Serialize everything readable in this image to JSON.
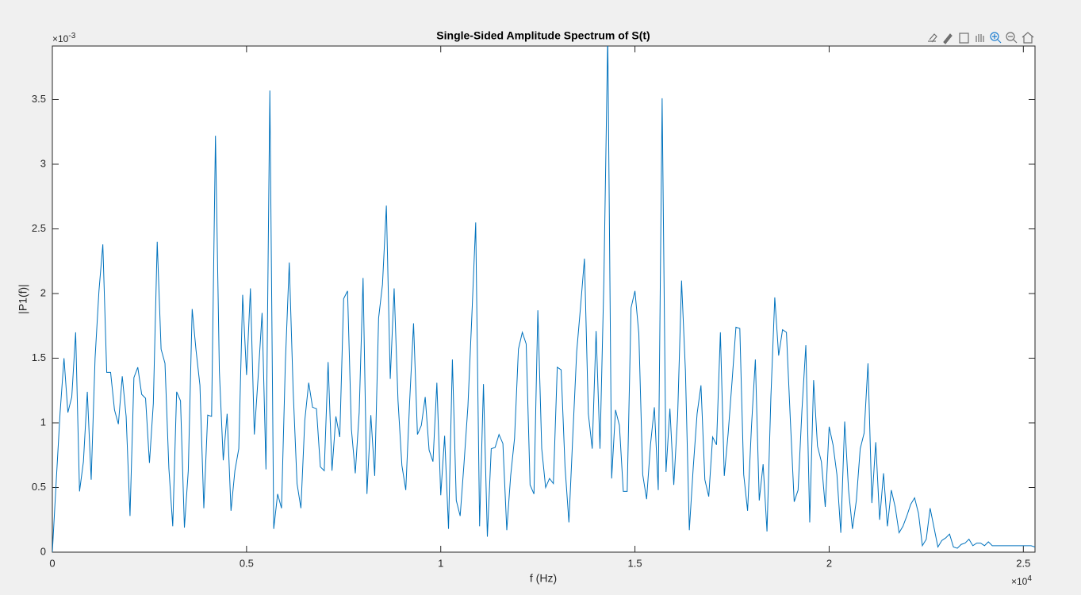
{
  "chart_data": {
    "type": "line",
    "title": "Single-Sided Amplitude Spectrum of S(t)",
    "xlabel": "f (Hz)",
    "ylabel": "|P1(f)|",
    "x_multiplier": {
      "base": "×10",
      "exponent": "4"
    },
    "y_multiplier": {
      "base": "×10",
      "exponent": "-3"
    },
    "xlim": [
      0,
      2.53
    ],
    "ylim": [
      0,
      3.914
    ],
    "xticks": [
      0,
      0.5,
      1,
      1.5,
      2,
      2.5
    ],
    "yticks": [
      0,
      0.5,
      1,
      1.5,
      2,
      2.5,
      3,
      3.5
    ],
    "grid": false,
    "x": [
      0,
      0.01,
      0.02,
      0.03,
      0.04,
      0.05,
      0.06,
      0.07,
      0.08,
      0.09,
      0.1,
      0.11,
      0.12,
      0.13,
      0.14,
      0.15,
      0.16,
      0.17,
      0.18,
      0.19,
      0.2,
      0.21,
      0.22,
      0.23,
      0.24,
      0.25,
      0.26,
      0.27,
      0.28,
      0.29,
      0.3,
      0.31,
      0.32,
      0.33,
      0.34,
      0.35,
      0.36,
      0.37,
      0.38,
      0.39,
      0.4,
      0.41,
      0.42,
      0.43,
      0.44,
      0.45,
      0.46,
      0.47,
      0.48,
      0.49,
      0.5,
      0.51,
      0.52,
      0.53,
      0.54,
      0.55,
      0.56,
      0.57,
      0.58,
      0.59,
      0.6,
      0.61,
      0.62,
      0.63,
      0.64,
      0.65,
      0.66,
      0.67,
      0.68,
      0.69,
      0.7,
      0.71,
      0.72,
      0.73,
      0.74,
      0.75,
      0.76,
      0.77,
      0.78,
      0.79,
      0.8,
      0.81,
      0.82,
      0.83,
      0.84,
      0.85,
      0.86,
      0.87,
      0.88,
      0.89,
      0.9,
      0.91,
      0.92,
      0.93,
      0.94,
      0.95,
      0.96,
      0.97,
      0.98,
      0.99,
      1,
      1.01,
      1.02,
      1.03,
      1.04,
      1.05,
      1.06,
      1.07,
      1.08,
      1.09,
      1.1,
      1.11,
      1.12,
      1.13,
      1.14,
      1.15,
      1.16,
      1.17,
      1.18,
      1.19,
      1.2,
      1.21,
      1.22,
      1.23,
      1.24,
      1.25,
      1.26,
      1.27,
      1.28,
      1.29,
      1.3,
      1.31,
      1.32,
      1.33,
      1.34,
      1.35,
      1.36,
      1.37,
      1.38,
      1.39,
      1.4,
      1.41,
      1.42,
      1.43,
      1.44,
      1.45,
      1.46,
      1.47,
      1.48,
      1.49,
      1.5,
      1.51,
      1.52,
      1.53,
      1.54,
      1.55,
      1.56,
      1.57,
      1.58,
      1.59,
      1.6,
      1.61,
      1.62,
      1.63,
      1.64,
      1.65,
      1.66,
      1.67,
      1.68,
      1.69,
      1.7,
      1.71,
      1.72,
      1.73,
      1.74,
      1.75,
      1.76,
      1.77,
      1.78,
      1.79,
      1.8,
      1.81,
      1.82,
      1.83,
      1.84,
      1.85,
      1.86,
      1.87,
      1.88,
      1.89,
      1.9,
      1.91,
      1.92,
      1.93,
      1.94,
      1.95,
      1.96,
      1.97,
      1.98,
      1.99,
      2,
      2.01,
      2.02,
      2.03,
      2.04,
      2.05,
      2.06,
      2.07,
      2.08,
      2.09,
      2.1,
      2.11,
      2.12,
      2.13,
      2.14,
      2.15,
      2.16,
      2.17,
      2.18,
      2.19,
      2.2,
      2.21,
      2.22,
      2.23,
      2.24,
      2.25,
      2.26,
      2.27,
      2.28,
      2.29,
      2.3,
      2.31,
      2.32,
      2.33,
      2.34,
      2.35,
      2.36,
      2.37,
      2.38,
      2.39,
      2.4,
      2.41,
      2.42,
      2.43,
      2.44,
      2.45,
      2.46,
      2.47,
      2.48,
      2.49,
      2.5,
      2.51,
      2.52,
      2.53
    ],
    "series": [
      {
        "color": "#0072bd",
        "values": [
          0,
          0.55,
          1.08,
          1.5,
          1.08,
          1.2,
          1.7,
          0.47,
          0.7,
          1.24,
          0.56,
          1.5,
          2.02,
          2.38,
          1.39,
          1.39,
          1.1,
          0.99,
          1.36,
          1.05,
          0.28,
          1.35,
          1.43,
          1.22,
          1.19,
          0.69,
          1.15,
          2.4,
          1.57,
          1.46,
          0.65,
          0.2,
          1.24,
          1.17,
          0.19,
          0.63,
          1.88,
          1.56,
          1.29,
          0.34,
          1.06,
          1.05,
          3.22,
          1.4,
          0.71,
          1.07,
          0.32,
          0.63,
          0.8,
          1.99,
          1.37,
          2.04,
          0.91,
          1.36,
          1.85,
          0.64,
          3.57,
          0.18,
          0.45,
          0.34,
          1.47,
          2.24,
          1.25,
          0.53,
          0.34,
          1.02,
          1.31,
          1.12,
          1.11,
          0.66,
          0.63,
          1.47,
          0.63,
          1.05,
          0.89,
          1.96,
          2.02,
          0.95,
          0.61,
          1.08,
          2.12,
          0.45,
          1.06,
          0.59,
          1.81,
          2.07,
          2.68,
          1.34,
          2.04,
          1.17,
          0.67,
          0.48,
          1.17,
          1.77,
          0.91,
          0.98,
          1.2,
          0.79,
          0.7,
          1.31,
          0.44,
          0.9,
          0.18,
          1.49,
          0.4,
          0.28,
          0.69,
          1.13,
          1.82,
          2.55,
          0.2,
          1.3,
          0.12,
          0.8,
          0.81,
          0.91,
          0.84,
          0.17,
          0.59,
          0.88,
          1.57,
          1.7,
          1.61,
          0.52,
          0.45,
          1.87,
          0.8,
          0.5,
          0.57,
          0.53,
          1.43,
          1.41,
          0.66,
          0.23,
          0.9,
          1.55,
          1.9,
          2.27,
          1.07,
          0.8,
          1.71,
          0.8,
          2.1,
          4.0,
          0.57,
          1.1,
          0.98,
          0.47,
          0.47,
          1.89,
          2.02,
          1.69,
          0.6,
          0.41,
          0.83,
          1.12,
          0.48,
          3.51,
          0.62,
          1.11,
          0.52,
          1.06,
          2.1,
          1.4,
          0.17,
          0.65,
          1.07,
          1.29,
          0.56,
          0.43,
          0.89,
          0.83,
          1.7,
          0.59,
          0.92,
          1.32,
          1.74,
          1.73,
          0.6,
          0.32,
          0.97,
          1.49,
          0.4,
          0.68,
          0.16,
          1.2,
          1.97,
          1.52,
          1.72,
          1.7,
          1.03,
          0.39,
          0.48,
          1.1,
          1.6,
          0.23,
          1.33,
          0.82,
          0.7,
          0.35,
          0.97,
          0.83,
          0.6,
          0.15,
          1.01,
          0.48,
          0.18,
          0.4,
          0.8,
          0.92,
          1.46,
          0.38,
          0.85,
          0.25,
          0.61,
          0.2,
          0.48,
          0.35,
          0.15,
          0.2,
          0.28,
          0.37,
          0.42,
          0.3,
          0.05,
          0.1,
          0.34,
          0.19,
          0.04,
          0.09,
          0.11,
          0.14,
          0.04,
          0.03,
          0.06,
          0.07,
          0.1,
          0.05,
          0.07,
          0.07,
          0.05,
          0.08,
          0.05,
          0.05,
          0.05,
          0.05,
          0.05,
          0.05,
          0.05,
          0.05,
          0.05,
          0.05,
          0.05,
          0.04
        ]
      }
    ]
  }
}
